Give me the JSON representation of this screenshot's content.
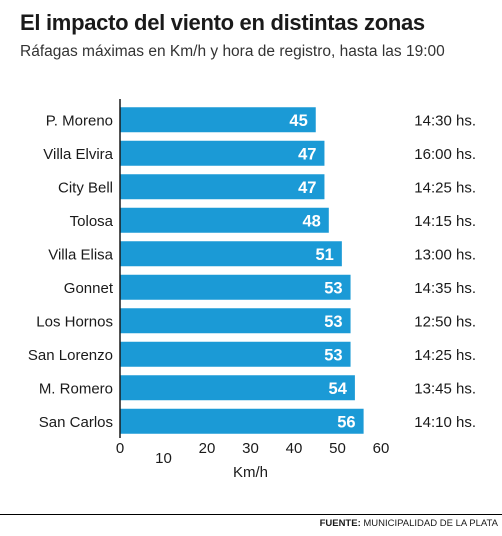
{
  "title": "El impacto del viento en distintas zonas",
  "subtitle": "Ráfagas máximas en Km/h y hora de registro, hasta las 19:00",
  "source_label": "FUENTE:",
  "source_value": "MUNICIPALIDAD DE LA PLATA",
  "chart_data": {
    "type": "bar",
    "orientation": "horizontal",
    "categories": [
      "P. Moreno",
      "Villa Elvira",
      "City Bell",
      "Tolosa",
      "Villa Elisa",
      "Gonnet",
      "Los Hornos",
      "San Lorenzo",
      "M. Romero",
      "San Carlos"
    ],
    "values": [
      45,
      47,
      47,
      48,
      51,
      53,
      53,
      53,
      54,
      56
    ],
    "times": [
      "14:30 hs.",
      "16:00 hs.",
      "14:25 hs.",
      "14:15 hs.",
      "13:00 hs.",
      "14:35 hs.",
      "12:50 hs.",
      "14:25 hs.",
      "13:45 hs.",
      "14:10 hs."
    ],
    "xlabel": "Km/h",
    "xlim": [
      0,
      60
    ],
    "xticks": [
      0,
      10,
      20,
      30,
      40,
      50,
      60
    ],
    "bar_color": "#1b9ad6",
    "grid": false
  }
}
